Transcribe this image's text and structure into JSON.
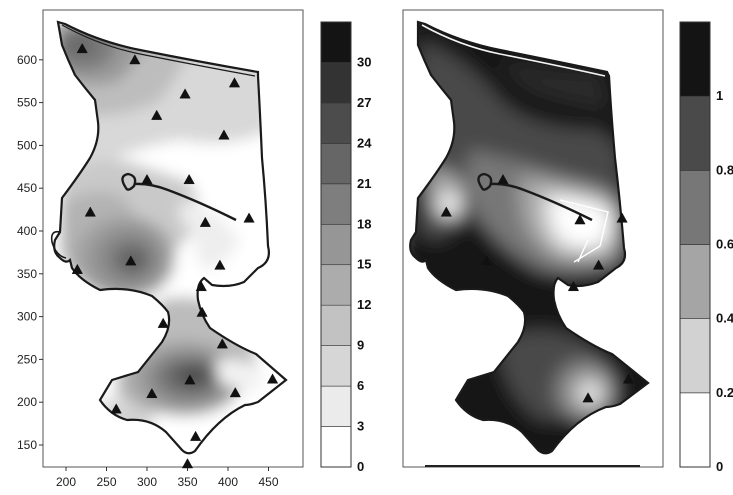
{
  "chart_data": [
    {
      "type": "contour-map",
      "title": "",
      "xlabel": "",
      "ylabel": "",
      "xlim": [
        180,
        480
      ],
      "ylim": [
        125,
        650
      ],
      "x_ticks": [
        200,
        250,
        300,
        350,
        400,
        450
      ],
      "y_ticks": [
        150,
        200,
        250,
        300,
        350,
        400,
        450,
        500,
        550,
        600
      ],
      "x_tick_labels": [
        "200",
        "250",
        "300",
        "350",
        "400",
        "450"
      ],
      "y_tick_labels": [
        "150",
        "200",
        "250",
        "300",
        "350",
        "400",
        "450",
        "500",
        "550",
        "600"
      ],
      "colorbar": {
        "levels": [
          0,
          3,
          6,
          9,
          12,
          15,
          18,
          21,
          24,
          27,
          30
        ],
        "labels": [
          "0",
          "3",
          "6",
          "9",
          "12",
          "15",
          "18",
          "21",
          "24",
          "27",
          "30"
        ],
        "colors": [
          "#ffffff",
          "#ebebeb",
          "#d6d6d6",
          "#c2c2c2",
          "#acacac",
          "#969696",
          "#7e7e7e",
          "#666666",
          "#4c4c4c",
          "#333333",
          "#141414"
        ]
      },
      "sampling_points": [
        {
          "x": 220,
          "y": 613
        },
        {
          "x": 285,
          "y": 600
        },
        {
          "x": 347,
          "y": 560
        },
        {
          "x": 408,
          "y": 573
        },
        {
          "x": 312,
          "y": 535
        },
        {
          "x": 395,
          "y": 512
        },
        {
          "x": 300,
          "y": 460
        },
        {
          "x": 352,
          "y": 460
        },
        {
          "x": 230,
          "y": 422
        },
        {
          "x": 426,
          "y": 415
        },
        {
          "x": 372,
          "y": 410
        },
        {
          "x": 280,
          "y": 365
        },
        {
          "x": 390,
          "y": 360
        },
        {
          "x": 214,
          "y": 355
        },
        {
          "x": 367,
          "y": 335
        },
        {
          "x": 320,
          "y": 292
        },
        {
          "x": 368,
          "y": 305
        },
        {
          "x": 393,
          "y": 268
        },
        {
          "x": 353,
          "y": 226
        },
        {
          "x": 306,
          "y": 210
        },
        {
          "x": 409,
          "y": 211
        },
        {
          "x": 455,
          "y": 227
        },
        {
          "x": 262,
          "y": 192
        },
        {
          "x": 360,
          "y": 160
        },
        {
          "x": 350,
          "y": 128
        }
      ]
    },
    {
      "type": "contour-map",
      "title": "",
      "colorbar": {
        "levels": [
          0,
          0.2,
          0.4,
          0.6,
          0.8,
          1
        ],
        "labels": [
          "0",
          "0.2",
          "0.4",
          "0.6",
          "0.8",
          "1"
        ],
        "colors": [
          "#ffffff",
          "#d2d2d2",
          "#a5a5a5",
          "#777777",
          "#4a4a4a",
          "#141414"
        ]
      },
      "sampling_points": [
        {
          "x": 300,
          "y": 460
        },
        {
          "x": 230,
          "y": 422
        },
        {
          "x": 395,
          "y": 413
        },
        {
          "x": 447,
          "y": 415
        },
        {
          "x": 280,
          "y": 365
        },
        {
          "x": 418,
          "y": 360
        },
        {
          "x": 387,
          "y": 335
        },
        {
          "x": 405,
          "y": 205
        },
        {
          "x": 455,
          "y": 227
        }
      ]
    }
  ]
}
